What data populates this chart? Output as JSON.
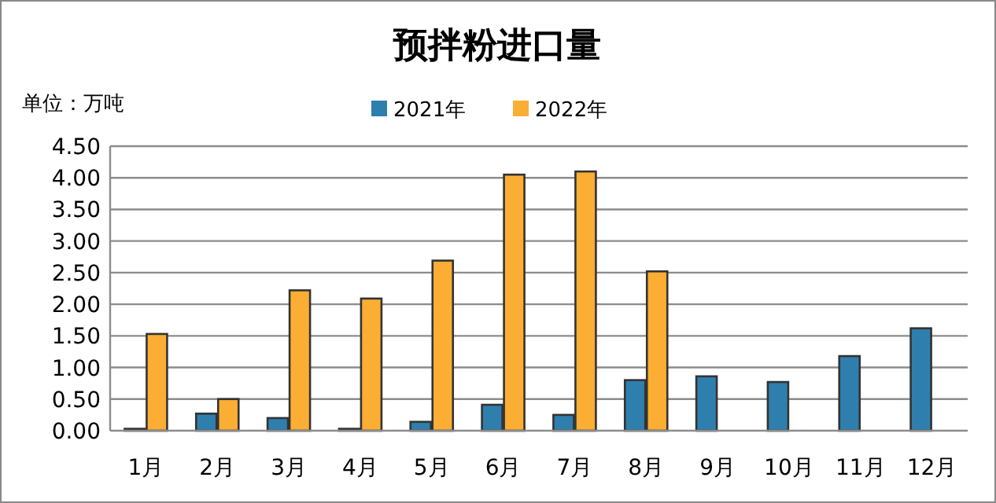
{
  "chart_data": {
    "type": "bar",
    "title": "预拌粉进口量",
    "annotations": [
      "单位：万吨"
    ],
    "categories": [
      "1月",
      "2月",
      "3月",
      "4月",
      "5月",
      "6月",
      "7月",
      "8月",
      "9月",
      "10月",
      "11月",
      "12月"
    ],
    "series": [
      {
        "name": "2021年",
        "color": "#2e7fad",
        "values": [
          0.03,
          0.27,
          0.2,
          0.03,
          0.14,
          0.41,
          0.25,
          0.8,
          0.86,
          0.77,
          1.18,
          1.62
        ]
      },
      {
        "name": "2022年",
        "color": "#fbae33",
        "values": [
          1.53,
          0.5,
          2.22,
          2.09,
          2.69,
          4.05,
          4.1,
          2.52,
          null,
          null,
          null,
          null
        ]
      }
    ],
    "ylim": [
      0,
      4.5
    ],
    "yticks": [
      {
        "value": 0,
        "label": "0.00"
      },
      {
        "value": 0.5,
        "label": "0.50"
      },
      {
        "value": 1,
        "label": "1.00"
      },
      {
        "value": 1.5,
        "label": "1.50"
      },
      {
        "value": 2,
        "label": "2.00"
      },
      {
        "value": 2.5,
        "label": "2.50"
      },
      {
        "value": 3,
        "label": "3.00"
      },
      {
        "value": 3.5,
        "label": "3.50"
      },
      {
        "value": 4,
        "label": "4.00"
      },
      {
        "value": 4.5,
        "label": "4.50"
      }
    ],
    "grid": "y",
    "legend": "top"
  }
}
